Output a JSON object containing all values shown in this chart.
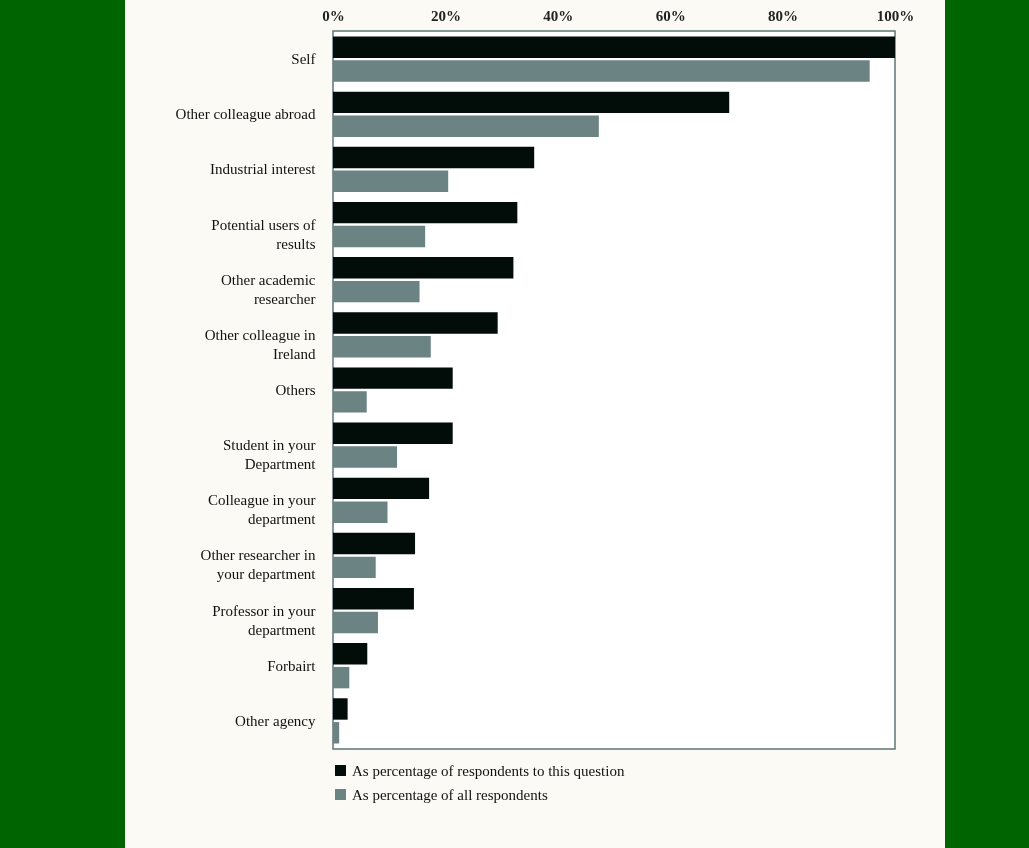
{
  "chart_data": {
    "type": "bar",
    "orientation": "horizontal",
    "categories": [
      "Self",
      "Other colleague abroad",
      "Industrial interest",
      "Potential users of results",
      "Other academic researcher",
      "Other colleague in Ireland",
      "Others",
      "Student in your Department",
      "Colleague in your department",
      "Other researcher in your department",
      "Professor in your department",
      "Forbairt",
      "Other agency"
    ],
    "series": [
      {
        "name": "As percentage of respondents to this question",
        "color": "#020c08",
        "values": [
          100,
          70.5,
          35.8,
          32.8,
          32.1,
          29.3,
          21.3,
          21.3,
          17.1,
          14.6,
          14.4,
          6.1,
          2.6
        ]
      },
      {
        "name": "As percentage of all respondents",
        "color": "#6b8483",
        "values": [
          95.5,
          47.3,
          20.5,
          16.4,
          15.4,
          17.4,
          6.0,
          11.4,
          9.7,
          7.6,
          8.0,
          2.9,
          1.1
        ]
      }
    ],
    "xlim": [
      0,
      100
    ],
    "xticks": [
      {
        "value": 0,
        "label": "0%"
      },
      {
        "value": 20,
        "label": "20%"
      },
      {
        "value": 40,
        "label": "40%"
      },
      {
        "value": 60,
        "label": "60%"
      },
      {
        "value": 80,
        "label": "80%"
      },
      {
        "value": 100,
        "label": "100%"
      }
    ],
    "grid": false,
    "legend": "bottom"
  }
}
